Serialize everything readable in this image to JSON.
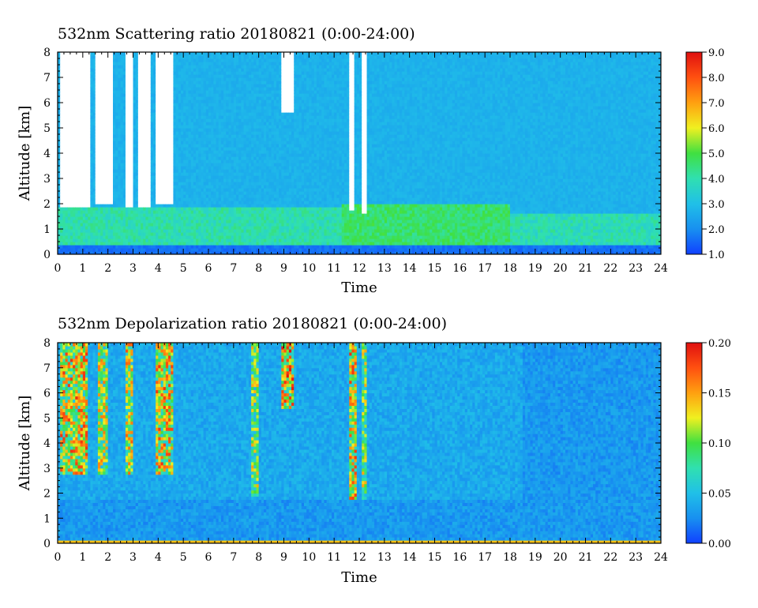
{
  "chart_data": [
    {
      "type": "heatmap",
      "title": "532nm Scattering ratio  20180821 (0:00-24:00)",
      "xlabel": "Time",
      "ylabel": "Altitude [km]",
      "xlim": [
        0,
        24
      ],
      "ylim": [
        0,
        8
      ],
      "x_ticks": [
        "0",
        "1",
        "2",
        "3",
        "4",
        "5",
        "6",
        "7",
        "8",
        "9",
        "10",
        "11",
        "12",
        "13",
        "14",
        "15",
        "16",
        "17",
        "18",
        "19",
        "20",
        "21",
        "22",
        "23",
        "24"
      ],
      "y_ticks": [
        "0",
        "1",
        "2",
        "3",
        "4",
        "5",
        "6",
        "7",
        "8"
      ],
      "colorbar": {
        "range": [
          1.0,
          9.0
        ],
        "ticks": [
          "1.0",
          "2.0",
          "3.0",
          "4.0",
          "5.0",
          "6.0",
          "7.0",
          "8.0",
          "9.0"
        ],
        "colors": [
          "#1040ff",
          "#1890f0",
          "#20c0e8",
          "#30e0b0",
          "#40e040",
          "#f0f020",
          "#ffa010",
          "#ff5010",
          "#e01010"
        ]
      },
      "background_value": 2.7,
      "boundary_layer": [
        {
          "time": [
            0,
            11.3
          ],
          "altitude": [
            0.4,
            1.9
          ],
          "value": 4.0
        },
        {
          "time": [
            11.3,
            18
          ],
          "altitude": [
            0.4,
            2.0
          ],
          "value": 4.6
        },
        {
          "time": [
            18,
            24
          ],
          "altitude": [
            0.4,
            1.6
          ],
          "value": 3.9
        }
      ],
      "saturated_cloud_columns": [
        {
          "time": [
            0.15,
            1.3
          ],
          "altitude": [
            1.9,
            8
          ]
        },
        {
          "time": [
            1.55,
            2.2
          ],
          "altitude": [
            2.0,
            8
          ]
        },
        {
          "time": [
            2.75,
            2.95
          ],
          "altitude": [
            1.9,
            8
          ]
        },
        {
          "time": [
            3.2,
            3.75
          ],
          "altitude": [
            1.9,
            8
          ]
        },
        {
          "time": [
            3.95,
            4.6
          ],
          "altitude": [
            2.0,
            8
          ]
        },
        {
          "time": [
            8.95,
            9.4
          ],
          "altitude": [
            5.6,
            8
          ]
        },
        {
          "time": [
            11.6,
            11.85
          ],
          "altitude": [
            1.7,
            8
          ]
        },
        {
          "time": [
            12.1,
            12.3
          ],
          "altitude": [
            1.6,
            8
          ]
        }
      ]
    },
    {
      "type": "heatmap",
      "title": "532nm Depolarization ratio  20180821 (0:00-24:00)",
      "xlabel": "Time",
      "ylabel": "Altitude [km]",
      "xlim": [
        0,
        24
      ],
      "ylim": [
        0,
        8
      ],
      "x_ticks": [
        "0",
        "1",
        "2",
        "3",
        "4",
        "5",
        "6",
        "7",
        "8",
        "9",
        "10",
        "11",
        "12",
        "13",
        "14",
        "15",
        "16",
        "17",
        "18",
        "19",
        "20",
        "21",
        "22",
        "23",
        "24"
      ],
      "y_ticks": [
        "0",
        "1",
        "2",
        "3",
        "4",
        "5",
        "6",
        "7",
        "8"
      ],
      "colorbar": {
        "range": [
          0.0,
          0.2
        ],
        "ticks": [
          "0.00",
          "0.05",
          "0.10",
          "0.15",
          "0.20"
        ],
        "colors": [
          "#1040ff",
          "#1890f0",
          "#20c0e8",
          "#30e0b0",
          "#40e040",
          "#f0f020",
          "#ffa010",
          "#ff5010",
          "#e01010"
        ]
      },
      "background_value": 0.03,
      "high_depol_columns": [
        {
          "time": [
            0.1,
            1.2
          ],
          "altitude": [
            2.7,
            8
          ],
          "value": 0.15
        },
        {
          "time": [
            1.6,
            2.0
          ],
          "altitude": [
            2.7,
            8
          ],
          "value": 0.13
        },
        {
          "time": [
            2.7,
            3.0
          ],
          "altitude": [
            2.7,
            8
          ],
          "value": 0.14
        },
        {
          "time": [
            3.9,
            4.6
          ],
          "altitude": [
            2.7,
            8
          ],
          "value": 0.15
        },
        {
          "time": [
            7.7,
            7.95
          ],
          "altitude": [
            1.9,
            8
          ],
          "value": 0.12
        },
        {
          "time": [
            8.9,
            9.4
          ],
          "altitude": [
            5.4,
            8
          ],
          "value": 0.16
        },
        {
          "time": [
            11.6,
            11.9
          ],
          "altitude": [
            1.8,
            8
          ],
          "value": 0.15
        },
        {
          "time": [
            12.1,
            12.3
          ],
          "altitude": [
            1.8,
            8
          ],
          "value": 0.12
        }
      ],
      "surface_layer": {
        "altitude": [
          0,
          0.15
        ],
        "value": 0.14
      }
    }
  ]
}
